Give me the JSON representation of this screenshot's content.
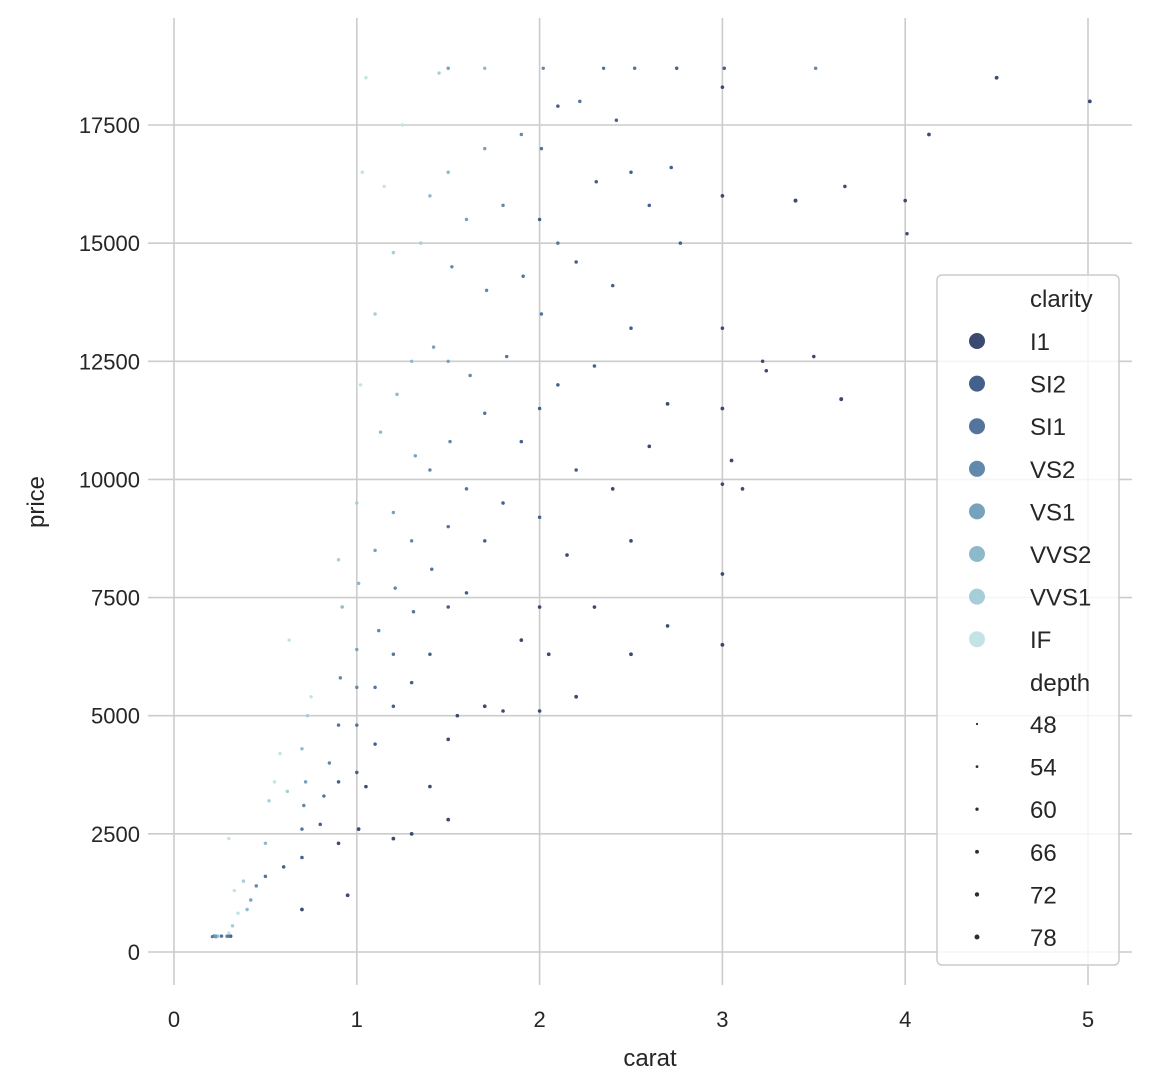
{
  "chart_data": {
    "type": "scatter",
    "xlabel": "carat",
    "ylabel": "price",
    "xlim": [
      -0.15,
      5.2
    ],
    "ylim": [
      -700,
      19700
    ],
    "xticks": [
      0,
      1,
      2,
      3,
      4,
      5
    ],
    "yticks": [
      0,
      2500,
      5000,
      7500,
      10000,
      12500,
      15000,
      17500
    ],
    "grid": true,
    "legend": {
      "placement": "right",
      "hue_title": "clarity",
      "hue_levels": [
        "I1",
        "SI2",
        "SI1",
        "VS2",
        "VS1",
        "VVS2",
        "VVS1",
        "IF"
      ],
      "hue_colors": [
        "#3b4a70",
        "#45608a",
        "#53749b",
        "#6289ab",
        "#77a2bd",
        "#8cbacb",
        "#a5ced8",
        "#c3e3e6"
      ],
      "size_title": "depth",
      "size_levels": [
        "48",
        "54",
        "60",
        "66",
        "72",
        "78"
      ]
    },
    "point_columns": [
      "carat",
      "price",
      "clarity",
      "depth"
    ],
    "points": [
      [
        0.23,
        326,
        "SI2",
        61.5
      ],
      [
        0.21,
        326,
        "SI1",
        59.8
      ],
      [
        0.23,
        327,
        "VS1",
        56.9
      ],
      [
        0.29,
        334,
        "VS2",
        62.4
      ],
      [
        0.31,
        335,
        "SI2",
        63.3
      ],
      [
        0.24,
        336,
        "VVS2",
        62.8
      ],
      [
        0.24,
        336,
        "VVS1",
        62.3
      ],
      [
        0.26,
        337,
        "SI1",
        61.9
      ],
      [
        0.22,
        337,
        "VS2",
        65.1
      ],
      [
        0.23,
        338,
        "VS1",
        59.4
      ],
      [
        0.3,
        339,
        "SI1",
        64.0
      ],
      [
        0.3,
        402,
        "IF",
        61.2
      ],
      [
        0.32,
        553,
        "VVS1",
        61.7
      ],
      [
        0.35,
        820,
        "IF",
        62.0
      ],
      [
        0.4,
        900,
        "VVS2",
        61.5
      ],
      [
        0.33,
        1300,
        "IF",
        61.8
      ],
      [
        0.3,
        2400,
        "IF",
        61.0
      ],
      [
        0.38,
        1500,
        "VVS1",
        62.1
      ],
      [
        0.42,
        1100,
        "VS1",
        61.4
      ],
      [
        0.45,
        1400,
        "VS2",
        62.2
      ],
      [
        0.5,
        1600,
        "SI1",
        61.9
      ],
      [
        0.5,
        2300,
        "VVS2",
        61.6
      ],
      [
        0.52,
        3200,
        "VVS1",
        61.3
      ],
      [
        0.55,
        3600,
        "IF",
        61.9
      ],
      [
        0.6,
        1800,
        "SI2",
        62.4
      ],
      [
        0.58,
        4200,
        "IF",
        61.2
      ],
      [
        0.62,
        3400,
        "VVS1",
        61.8
      ],
      [
        0.63,
        6600,
        "IF",
        61.0
      ],
      [
        0.7,
        2000,
        "SI2",
        62.7
      ],
      [
        0.7,
        2600,
        "SI1",
        61.8
      ],
      [
        0.71,
        3100,
        "VS2",
        61.9
      ],
      [
        0.72,
        3600,
        "VS1",
        62.1
      ],
      [
        0.7,
        4300,
        "VVS2",
        61.6
      ],
      [
        0.73,
        5000,
        "VVS1",
        61.2
      ],
      [
        0.7,
        900,
        "I1",
        64.5
      ],
      [
        0.75,
        5400,
        "IF",
        61.5
      ],
      [
        0.8,
        2700,
        "SI2",
        62.3
      ],
      [
        0.82,
        3300,
        "SI1",
        61.7
      ],
      [
        0.85,
        4000,
        "VS2",
        61.4
      ],
      [
        0.9,
        2300,
        "I1",
        63.8
      ],
      [
        0.9,
        3600,
        "SI2",
        62.5
      ],
      [
        0.9,
        4800,
        "SI1",
        61.9
      ],
      [
        0.91,
        5800,
        "VS2",
        61.6
      ],
      [
        0.92,
        7300,
        "VVS2",
        61.3
      ],
      [
        0.9,
        8300,
        "VVS1",
        62.0
      ],
      [
        0.95,
        1200,
        "I1",
        65.2
      ],
      [
        1.0,
        3800,
        "SI2",
        62.8
      ],
      [
        1.0,
        4800,
        "SI1",
        61.9
      ],
      [
        1.0,
        5600,
        "VS2",
        61.6
      ],
      [
        1.0,
        6400,
        "VS1",
        61.5
      ],
      [
        1.01,
        7800,
        "VVS2",
        61.4
      ],
      [
        1.0,
        9500,
        "VVS1",
        61.8
      ],
      [
        1.02,
        12000,
        "IF",
        61.1
      ],
      [
        1.03,
        16500,
        "IF",
        61.5
      ],
      [
        1.05,
        18500,
        "IF",
        60.9
      ],
      [
        1.01,
        2600,
        "I1",
        64.0
      ],
      [
        1.05,
        3500,
        "I1",
        62.9
      ],
      [
        1.1,
        4400,
        "SI2",
        62.1
      ],
      [
        1.1,
        5600,
        "SI1",
        61.7
      ],
      [
        1.12,
        6800,
        "VS2",
        61.5
      ],
      [
        1.1,
        8500,
        "VS1",
        61.2
      ],
      [
        1.13,
        11000,
        "VVS2",
        61.4
      ],
      [
        1.1,
        13500,
        "VVS1",
        61.6
      ],
      [
        1.15,
        16200,
        "IF",
        61.0
      ],
      [
        1.2,
        2400,
        "I1",
        64.7
      ],
      [
        1.2,
        5200,
        "SI2",
        62.4
      ],
      [
        1.2,
        6300,
        "SI1",
        61.9
      ],
      [
        1.21,
        7700,
        "VS2",
        61.6
      ],
      [
        1.2,
        9300,
        "VS1",
        61.3
      ],
      [
        1.22,
        11800,
        "VVS2",
        61.5
      ],
      [
        1.2,
        14800,
        "VVS1",
        61.8
      ],
      [
        1.25,
        17500,
        "IF",
        61.2
      ],
      [
        1.3,
        2500,
        "I1",
        65.3
      ],
      [
        1.3,
        5700,
        "SI2",
        62.5
      ],
      [
        1.31,
        7200,
        "SI1",
        61.8
      ],
      [
        1.3,
        8700,
        "VS2",
        61.4
      ],
      [
        1.32,
        10500,
        "VS1",
        61.6
      ],
      [
        1.3,
        12500,
        "VVS2",
        61.2
      ],
      [
        1.35,
        15000,
        "VVS1",
        61.7
      ],
      [
        1.4,
        3500,
        "I1",
        63.2
      ],
      [
        1.4,
        6300,
        "SI2",
        62.3
      ],
      [
        1.41,
        8100,
        "SI1",
        61.8
      ],
      [
        1.4,
        10200,
        "VS2",
        61.5
      ],
      [
        1.42,
        12800,
        "VS1",
        61.2
      ],
      [
        1.4,
        16000,
        "VVS2",
        61.6
      ],
      [
        1.45,
        18600,
        "VVS1",
        61.1
      ],
      [
        1.5,
        2800,
        "I1",
        64.9
      ],
      [
        1.5,
        4500,
        "I1",
        63.5
      ],
      [
        1.5,
        7300,
        "SI2",
        62.6
      ],
      [
        1.5,
        9000,
        "SI1",
        61.9
      ],
      [
        1.51,
        10800,
        "VS2",
        61.7
      ],
      [
        1.5,
        12500,
        "VS1",
        61.4
      ],
      [
        1.52,
        14500,
        "VS2",
        61.2
      ],
      [
        1.5,
        16500,
        "VVS2",
        61.5
      ],
      [
        1.5,
        18700,
        "VS1",
        61.8
      ],
      [
        1.55,
        5000,
        "I1",
        62.8
      ],
      [
        1.6,
        7600,
        "SI2",
        62.4
      ],
      [
        1.6,
        9800,
        "SI1",
        61.9
      ],
      [
        1.62,
        12200,
        "VS2",
        61.5
      ],
      [
        1.6,
        15500,
        "VS1",
        61.3
      ],
      [
        1.7,
        5200,
        "I1",
        64.1
      ],
      [
        1.7,
        8700,
        "SI2",
        62.5
      ],
      [
        1.7,
        11400,
        "SI1",
        61.8
      ],
      [
        1.71,
        14000,
        "VS2",
        61.4
      ],
      [
        1.7,
        17000,
        "VS1",
        61.2
      ],
      [
        1.7,
        18700,
        "VVS2",
        61.6
      ],
      [
        1.8,
        5100,
        "I1",
        63.0
      ],
      [
        1.8,
        9500,
        "SI2",
        62.3
      ],
      [
        1.82,
        12600,
        "SI1",
        61.9
      ],
      [
        1.8,
        15800,
        "VS2",
        61.5
      ],
      [
        1.9,
        6600,
        "I1",
        64.4
      ],
      [
        1.9,
        10800,
        "SI2",
        62.6
      ],
      [
        1.91,
        14300,
        "SI1",
        61.7
      ],
      [
        1.9,
        17300,
        "VS2",
        61.4
      ],
      [
        2.0,
        5100,
        "I1",
        62.9
      ],
      [
        2.0,
        7300,
        "I1",
        63.8
      ],
      [
        2.0,
        9200,
        "SI2",
        62.4
      ],
      [
        2.0,
        11500,
        "SI2",
        62.1
      ],
      [
        2.01,
        13500,
        "SI1",
        61.8
      ],
      [
        2.0,
        15500,
        "SI2",
        62.0
      ],
      [
        2.01,
        17000,
        "SI1",
        61.6
      ],
      [
        2.02,
        18700,
        "VS2",
        61.3
      ],
      [
        2.05,
        6300,
        "I1",
        64.6
      ],
      [
        2.1,
        12000,
        "SI2",
        62.5
      ],
      [
        2.1,
        15000,
        "SI1",
        61.9
      ],
      [
        2.1,
        17900,
        "SI2",
        62.2
      ],
      [
        2.15,
        8400,
        "I1",
        63.3
      ],
      [
        2.2,
        5400,
        "I1",
        65.0
      ],
      [
        2.2,
        10200,
        "SI2",
        62.7
      ],
      [
        2.2,
        14600,
        "SI2",
        62.0
      ],
      [
        2.22,
        18000,
        "SI1",
        61.7
      ],
      [
        2.3,
        7300,
        "I1",
        63.9
      ],
      [
        2.3,
        12400,
        "SI2",
        62.8
      ],
      [
        2.31,
        16300,
        "SI2",
        62.1
      ],
      [
        2.35,
        18700,
        "SI1",
        61.5
      ],
      [
        2.4,
        9800,
        "I1",
        64.2
      ],
      [
        2.4,
        14100,
        "SI2",
        62.4
      ],
      [
        2.42,
        17600,
        "SI2",
        62.0
      ],
      [
        2.5,
        6300,
        "I1",
        65.1
      ],
      [
        2.5,
        8700,
        "I1",
        63.6
      ],
      [
        2.5,
        13200,
        "SI2",
        62.7
      ],
      [
        2.5,
        16500,
        "SI2",
        62.2
      ],
      [
        2.52,
        18700,
        "SI1",
        61.8
      ],
      [
        2.6,
        10700,
        "I1",
        64.0
      ],
      [
        2.6,
        15800,
        "SI2",
        62.5
      ],
      [
        2.7,
        6900,
        "I1",
        63.4
      ],
      [
        2.7,
        11600,
        "I1",
        64.3
      ],
      [
        2.72,
        16600,
        "SI2",
        62.6
      ],
      [
        2.75,
        18700,
        "SI2",
        62.0
      ],
      [
        2.77,
        15000,
        "SI2",
        62.9
      ],
      [
        3.0,
        6500,
        "I1",
        65.7
      ],
      [
        3.0,
        8000,
        "I1",
        64.2
      ],
      [
        3.0,
        9900,
        "I1",
        63.5
      ],
      [
        3.0,
        11500,
        "I1",
        64.8
      ],
      [
        3.0,
        13200,
        "I1",
        63.1
      ],
      [
        3.0,
        16000,
        "I1",
        64.0
      ],
      [
        3.0,
        18300,
        "I1",
        62.9
      ],
      [
        3.01,
        18700,
        "SI2",
        63.2
      ],
      [
        3.05,
        10400,
        "I1",
        65.3
      ],
      [
        3.11,
        9800,
        "I1",
        63.8
      ],
      [
        3.22,
        12500,
        "I1",
        62.6
      ],
      [
        3.24,
        12300,
        "I1",
        63.0
      ],
      [
        3.4,
        15900,
        "I1",
        66.8
      ],
      [
        3.5,
        12600,
        "I1",
        62.8
      ],
      [
        3.51,
        18700,
        "VS2",
        62.5
      ],
      [
        3.65,
        11700,
        "I1",
        67.1
      ],
      [
        3.67,
        16200,
        "I1",
        62.4
      ],
      [
        4.01,
        15200,
        "I1",
        61.0
      ],
      [
        4.0,
        15900,
        "I1",
        63.3
      ],
      [
        4.13,
        17300,
        "I1",
        64.8
      ],
      [
        4.5,
        18500,
        "I1",
        65.8
      ],
      [
        5.01,
        18000,
        "I1",
        65.5
      ]
    ]
  }
}
